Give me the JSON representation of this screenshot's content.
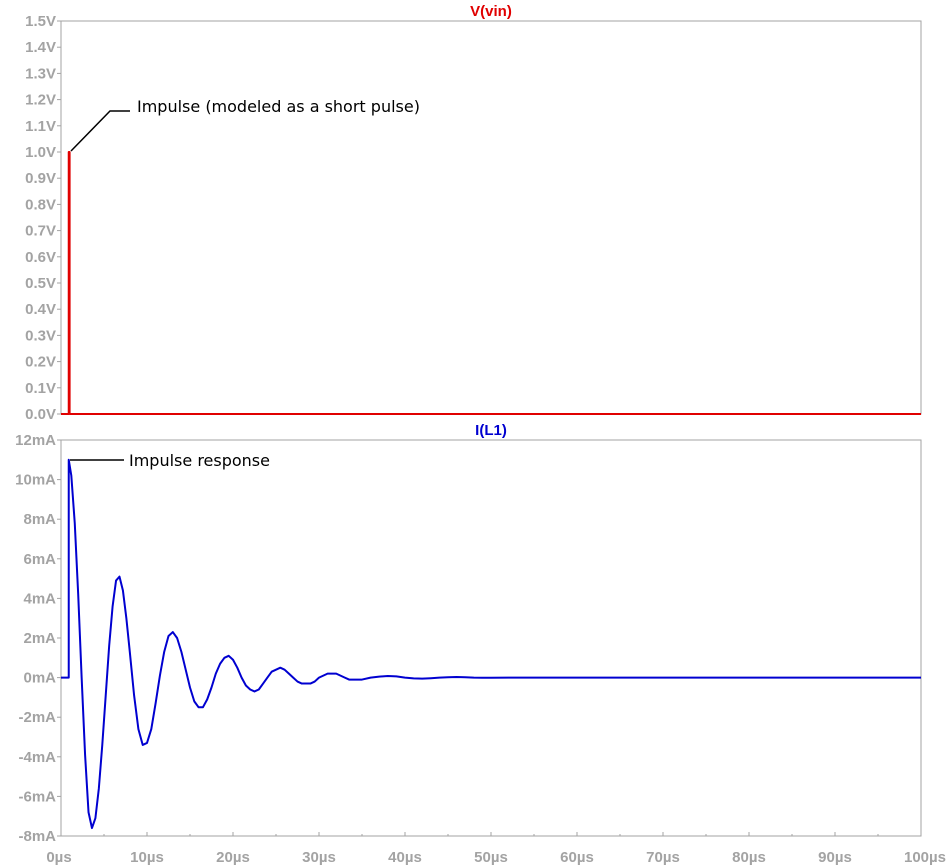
{
  "chart_data": [
    {
      "type": "line",
      "title": "V(vin)",
      "series": [
        {
          "name": "V(vin)",
          "color": "#e00000",
          "x": [
            0,
            0.9,
            0.9,
            1.0,
            1.0,
            100
          ],
          "y": [
            0,
            0,
            1.0,
            1.0,
            0,
            0
          ]
        }
      ],
      "xlim": [
        0,
        100
      ],
      "ylim": [
        0,
        1.5
      ],
      "yticks": [
        0,
        0.1,
        0.2,
        0.3,
        0.4,
        0.5,
        0.6,
        0.7,
        0.8,
        0.9,
        1.0,
        1.1,
        1.2,
        1.3,
        1.4,
        1.5
      ],
      "ytick_labels": [
        "0.0V",
        "0.1V",
        "0.2V",
        "0.3V",
        "0.4V",
        "0.5V",
        "0.6V",
        "0.7V",
        "0.8V",
        "0.9V",
        "1.0V",
        "1.1V",
        "1.2V",
        "1.3V",
        "1.4V",
        "1.5V"
      ],
      "annotations": [
        {
          "text": "Impulse (modeled as a short pulse)",
          "x": 1.0,
          "y": 1.0
        }
      ],
      "grid": false
    },
    {
      "type": "line",
      "title": "I(L1)",
      "series": [
        {
          "name": "I(L1)",
          "color": "#0000d0",
          "damping_time_constant_us": 7.0,
          "ringing_period_us": 6.4,
          "x": [
            0,
            0.9,
            0.9,
            1.2,
            1.6,
            2.0,
            2.4,
            2.8,
            3.2,
            3.6,
            4.0,
            4.4,
            4.8,
            5.2,
            5.6,
            6.0,
            6.4,
            6.8,
            7.2,
            7.6,
            8.0,
            8.5,
            9.0,
            9.5,
            10.0,
            10.5,
            11.0,
            11.5,
            12.0,
            12.5,
            13.0,
            13.5,
            14.0,
            14.5,
            15.0,
            15.5,
            16.0,
            16.5,
            17.0,
            17.5,
            18.0,
            18.5,
            19.0,
            19.5,
            20.0,
            20.5,
            21.0,
            21.5,
            22.0,
            22.5,
            23.0,
            23.5,
            24.0,
            24.5,
            25.0,
            25.5,
            26.0,
            26.5,
            27.0,
            27.5,
            28.0,
            28.5,
            29.0,
            29.5,
            30.0,
            30.5,
            31.0,
            31.5,
            32.0,
            32.5,
            33.0,
            33.5,
            34.0,
            34.5,
            35.0,
            36.0,
            37.0,
            38.0,
            39.0,
            40.0,
            41.0,
            42.0,
            43.0,
            44.0,
            45.0,
            46.0,
            47.0,
            48.0,
            49.0,
            50.0,
            52.0,
            54.0,
            56.0,
            58.0,
            60.0,
            65.0,
            70.0,
            80.0,
            90.0,
            100.0
          ],
          "y": [
            0,
            0,
            11.0,
            10.2,
            7.8,
            4.2,
            0.0,
            -3.9,
            -6.8,
            -7.6,
            -7.1,
            -5.6,
            -3.4,
            -0.9,
            1.6,
            3.6,
            4.9,
            5.1,
            4.4,
            3.0,
            1.3,
            -0.9,
            -2.6,
            -3.4,
            -3.3,
            -2.6,
            -1.3,
            0.1,
            1.3,
            2.1,
            2.3,
            2.0,
            1.3,
            0.4,
            -0.5,
            -1.2,
            -1.5,
            -1.5,
            -1.1,
            -0.5,
            0.2,
            0.7,
            1.0,
            1.1,
            0.9,
            0.5,
            0.0,
            -0.4,
            -0.6,
            -0.7,
            -0.6,
            -0.3,
            0.0,
            0.3,
            0.4,
            0.5,
            0.4,
            0.2,
            0.0,
            -0.2,
            -0.3,
            -0.3,
            -0.3,
            -0.2,
            0.0,
            0.1,
            0.2,
            0.2,
            0.2,
            0.1,
            0.0,
            -0.1,
            -0.1,
            -0.1,
            -0.1,
            0.0,
            0.05,
            0.08,
            0.06,
            0.0,
            -0.04,
            -0.05,
            -0.03,
            0.0,
            0.02,
            0.03,
            0.02,
            0.0,
            -0.01,
            -0.01,
            0.0,
            0.0,
            0.0,
            0.0,
            0.0,
            0.0,
            0.0,
            0.0,
            0.0,
            0.0
          ]
        }
      ],
      "xlim": [
        0,
        100
      ],
      "ylim": [
        -8,
        12
      ],
      "xticks": [
        0,
        10,
        20,
        30,
        40,
        50,
        60,
        70,
        80,
        90,
        100
      ],
      "xtick_labels": [
        "0µs",
        "10µs",
        "20µs",
        "30µs",
        "40µs",
        "50µs",
        "60µs",
        "70µs",
        "80µs",
        "90µs",
        "100µs"
      ],
      "yticks": [
        -8,
        -6,
        -4,
        -2,
        0,
        2,
        4,
        6,
        8,
        10,
        12
      ],
      "ytick_labels": [
        "-8mA",
        "-6mA",
        "-4mA",
        "-2mA",
        "0mA",
        "2mA",
        "4mA",
        "6mA",
        "8mA",
        "10mA",
        "12mA"
      ],
      "annotations": [
        {
          "text": "Impulse response",
          "x": 1.0,
          "y": 11.0
        }
      ],
      "grid": false
    }
  ],
  "colors": {
    "tick_label": "#a3a3a3",
    "frame": "#a3a3a3",
    "vin_trace": "#e00000",
    "il1_trace": "#0000d0"
  }
}
